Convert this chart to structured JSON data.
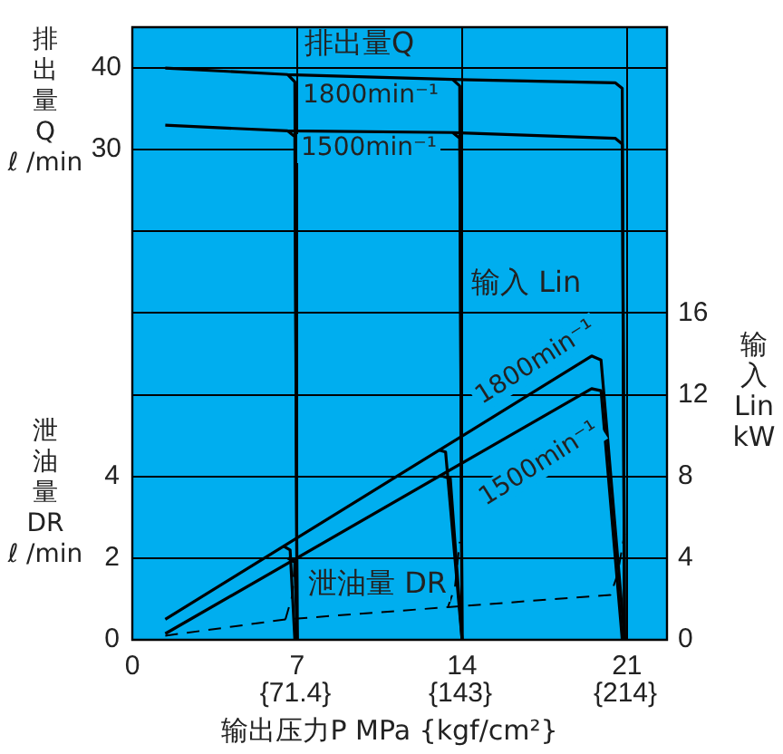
{
  "chart_data": {
    "type": "line",
    "xlabel": "输出压力P  MPa {kgf/cm²}",
    "ylabel": "排出量Q\nℓ /min",
    "y2label": "输入Lin\nkW",
    "y3label": "泄油量DR\nℓ /min",
    "xlim": [
      0,
      22.7
    ],
    "xticks": [
      0,
      7,
      14,
      21
    ],
    "ylim": [
      -30,
      45
    ],
    "yticks": [
      30,
      40
    ],
    "y2lim": [
      0,
      30
    ],
    "y2ticks": [
      0,
      4,
      8,
      12,
      16,
      {
        "value": 20,
        "label": null
      },
      {
        "value": 24,
        "label": null
      },
      {
        "value": 28,
        "label": null
      }
    ],
    "y3lim": [
      0,
      15
    ],
    "y3ticks": [
      0,
      2,
      4
    ],
    "grid": true,
    "legend": false,
    "marker": "none",
    "series": [
      {
        "axis": "y",
        "color": "#000000",
        "x": [
          1.4,
          6.6,
          13.6,
          20.5,
          20.8,
          20.9
        ],
        "values": [
          40,
          39.2,
          38.6,
          38.2,
          37.5,
          -30
        ]
      },
      {
        "axis": "y",
        "color": "#000000",
        "x": [
          6.6,
          6.9,
          7.0
        ],
        "values": [
          39.2,
          38.3,
          -30
        ]
      },
      {
        "axis": "y",
        "color": "#000000",
        "x": [
          13.6,
          13.9,
          14.0
        ],
        "values": [
          38.6,
          37.8,
          -30
        ]
      },
      {
        "axis": "y",
        "color": "#000000",
        "x": [
          1.4,
          6.6,
          13.6,
          20.5,
          20.8,
          20.9
        ],
        "values": [
          33,
          32.3,
          32.1,
          31.4,
          30.7,
          -30
        ]
      },
      {
        "axis": "y",
        "color": "#000000",
        "x": [
          6.6,
          6.9,
          7.0
        ],
        "values": [
          32.3,
          31.6,
          -30
        ]
      },
      {
        "axis": "y",
        "color": "#000000",
        "x": [
          13.6,
          13.9,
          14.0
        ],
        "values": [
          32.1,
          31.4,
          -30
        ]
      },
      {
        "axis": "y2",
        "color": "#000000",
        "x": [
          1.4,
          19.5,
          19.9,
          20.9
        ],
        "values": [
          1.0,
          13.9,
          13.7,
          0
        ]
      },
      {
        "axis": "y2",
        "color": "#000000",
        "x": [
          6.4,
          6.7,
          6.9
        ],
        "values": [
          4.6,
          4.4,
          0
        ]
      },
      {
        "axis": "y2",
        "color": "#000000",
        "x": [
          13.0,
          13.3,
          14.0
        ],
        "values": [
          9.3,
          9.2,
          0
        ]
      },
      {
        "axis": "y2",
        "color": "#000000",
        "x": [
          1.4,
          19.5,
          19.9,
          20.8
        ],
        "values": [
          0.3,
          12.3,
          12.2,
          0
        ]
      },
      {
        "axis": "y2",
        "color": "#000000",
        "x": [
          6.6,
          6.9,
          7.0
        ],
        "values": [
          4.0,
          3.8,
          0
        ]
      },
      {
        "axis": "y2",
        "color": "#000000",
        "x": [
          13.2,
          13.5,
          14.0
        ],
        "values": [
          8.0,
          7.9,
          0
        ]
      },
      {
        "axis": "y3",
        "color": "#000000",
        "line_style": "dashed",
        "x": [
          1.4,
          6.5,
          13.4,
          20.3,
          20.6,
          20.9
        ],
        "values": [
          0.1,
          0.5,
          0.8,
          1.1,
          1.6,
          2.6
        ]
      },
      {
        "axis": "y3",
        "color": "#000000",
        "line_style": "dashed",
        "x": [
          6.5,
          6.8,
          6.9
        ],
        "values": [
          0.5,
          1.1,
          2.0
        ]
      },
      {
        "axis": "y3",
        "color": "#000000",
        "line_style": "dashed",
        "x": [
          13.4,
          13.7,
          13.9
        ],
        "values": [
          0.8,
          1.3,
          2.4
        ]
      }
    ],
    "annotations": [
      "排出量Q",
      "1800min⁻¹",
      "1500min⁻¹",
      "输入 Lin",
      "1800min⁻¹",
      "1500min⁻¹",
      "泄油量 DR",
      "{71.4}",
      "{143}",
      "{214}"
    ]
  }
}
